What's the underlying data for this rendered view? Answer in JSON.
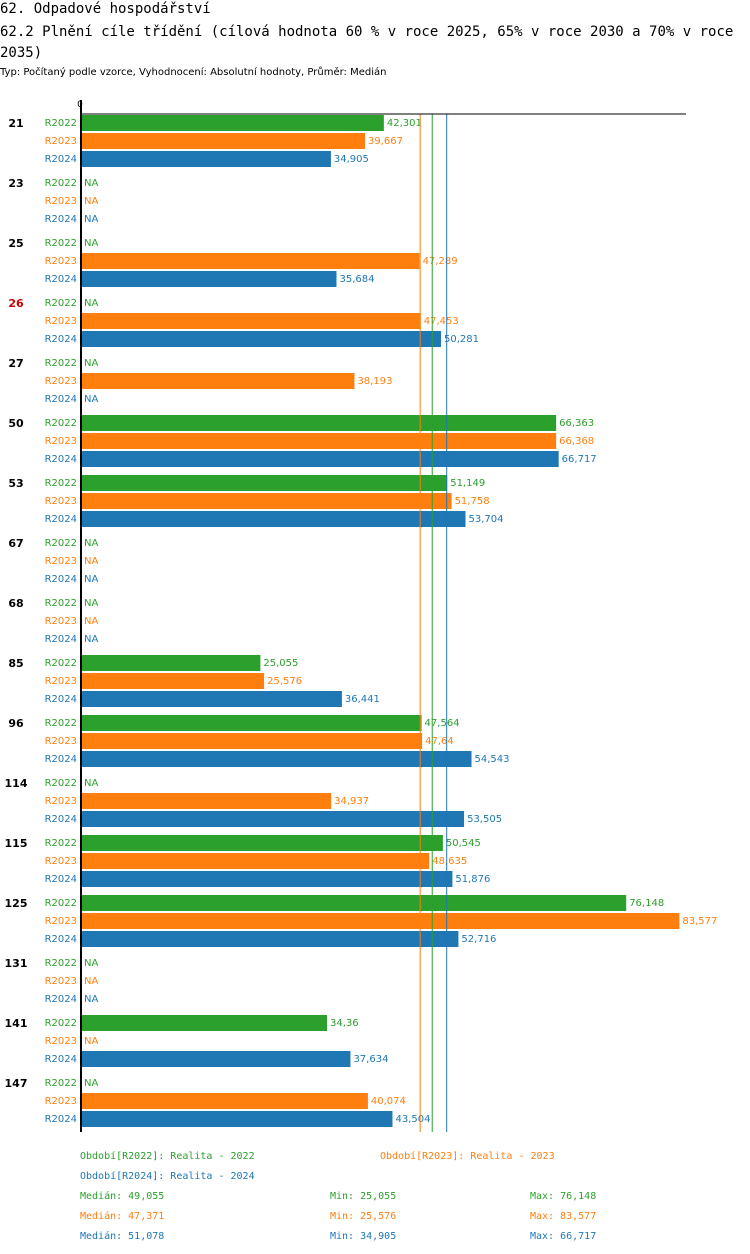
{
  "header": {
    "title": "62. Odpadové hospodářství",
    "subtitle": "62.2 Plnění cíle třídění (cílová hodnota 60 % v roce 2025, 65% v roce 2030 a 70% v roce 2035)",
    "info": "Typ: Počítaný podle vzorce, Vyhodnocení: Absolutní hodnoty, Průměr: Medián"
  },
  "colors": {
    "R2022": "#2ca02c",
    "R2023": "#ff7f0e",
    "R2024": "#1f77b4",
    "highlight": "#cc0000"
  },
  "chart_data": {
    "type": "bar",
    "orientation": "horizontal",
    "axis_zero_label": "0",
    "xlim": [
      0,
      84.5
    ],
    "series_names": [
      "R2022",
      "R2023",
      "R2024"
    ],
    "na_label": "NA",
    "groups": [
      {
        "label": "21",
        "highlight": false,
        "values": [
          42.301,
          39.667,
          34.905
        ],
        "labels": [
          "42,301",
          "39,667",
          "34,905"
        ]
      },
      {
        "label": "23",
        "highlight": false,
        "values": [
          null,
          null,
          null
        ],
        "labels": [
          "NA",
          "NA",
          "NA"
        ]
      },
      {
        "label": "25",
        "highlight": false,
        "values": [
          null,
          47.289,
          35.684
        ],
        "labels": [
          "NA",
          "47,289",
          "35,684"
        ]
      },
      {
        "label": "26",
        "highlight": true,
        "values": [
          null,
          47.453,
          50.281
        ],
        "labels": [
          "NA",
          "47,453",
          "50,281"
        ]
      },
      {
        "label": "27",
        "highlight": false,
        "values": [
          null,
          38.193,
          null
        ],
        "labels": [
          "NA",
          "38,193",
          "NA"
        ]
      },
      {
        "label": "50",
        "highlight": false,
        "values": [
          66.363,
          66.368,
          66.717
        ],
        "labels": [
          "66,363",
          "66,368",
          "66,717"
        ]
      },
      {
        "label": "53",
        "highlight": false,
        "values": [
          51.149,
          51.758,
          53.704
        ],
        "labels": [
          "51,149",
          "51,758",
          "53,704"
        ]
      },
      {
        "label": "67",
        "highlight": false,
        "values": [
          null,
          null,
          null
        ],
        "labels": [
          "NA",
          "NA",
          "NA"
        ]
      },
      {
        "label": "68",
        "highlight": false,
        "values": [
          null,
          null,
          null
        ],
        "labels": [
          "NA",
          "NA",
          "NA"
        ]
      },
      {
        "label": "85",
        "highlight": false,
        "values": [
          25.055,
          25.576,
          36.441
        ],
        "labels": [
          "25,055",
          "25,576",
          "36,441"
        ]
      },
      {
        "label": "96",
        "highlight": false,
        "values": [
          47.564,
          47.64,
          54.543
        ],
        "labels": [
          "47,564",
          "47,64",
          "54,543"
        ]
      },
      {
        "label": "114",
        "highlight": false,
        "values": [
          null,
          34.937,
          53.505
        ],
        "labels": [
          "NA",
          "34,937",
          "53,505"
        ]
      },
      {
        "label": "115",
        "highlight": false,
        "values": [
          50.545,
          48.635,
          51.876
        ],
        "labels": [
          "50,545",
          "48,635",
          "51,876"
        ]
      },
      {
        "label": "125",
        "highlight": false,
        "values": [
          76.148,
          83.577,
          52.716
        ],
        "labels": [
          "76,148",
          "83,577",
          "52,716"
        ]
      },
      {
        "label": "131",
        "highlight": false,
        "values": [
          null,
          null,
          null
        ],
        "labels": [
          "NA",
          "NA",
          "NA"
        ]
      },
      {
        "label": "141",
        "highlight": false,
        "values": [
          34.36,
          null,
          37.634
        ],
        "labels": [
          "34,36",
          "NA",
          "37,634"
        ]
      },
      {
        "label": "147",
        "highlight": false,
        "values": [
          null,
          40.074,
          43.504
        ],
        "labels": [
          "NA",
          "40,074",
          "43,504"
        ]
      }
    ],
    "medians": [
      49.055,
      47.371,
      51.078
    ]
  },
  "legend": {
    "periods": [
      {
        "text": "Období[R2022]: Realita - 2022",
        "color": "#2ca02c"
      },
      {
        "text": "Období[R2023]: Realita - 2023",
        "color": "#ff7f0e"
      },
      {
        "text": "Období[R2024]: Realita - 2024",
        "color": "#1f77b4"
      }
    ],
    "stats": [
      {
        "median": "Medián: 49,055",
        "min": "Min: 25,055",
        "max": "Max: 76,148",
        "color": "#2ca02c"
      },
      {
        "median": "Medián: 47,371",
        "min": "Min: 25,576",
        "max": "Max: 83,577",
        "color": "#ff7f0e"
      },
      {
        "median": "Medián: 51,078",
        "min": "Min: 34,905",
        "max": "Max: 66,717",
        "color": "#1f77b4"
      }
    ]
  }
}
